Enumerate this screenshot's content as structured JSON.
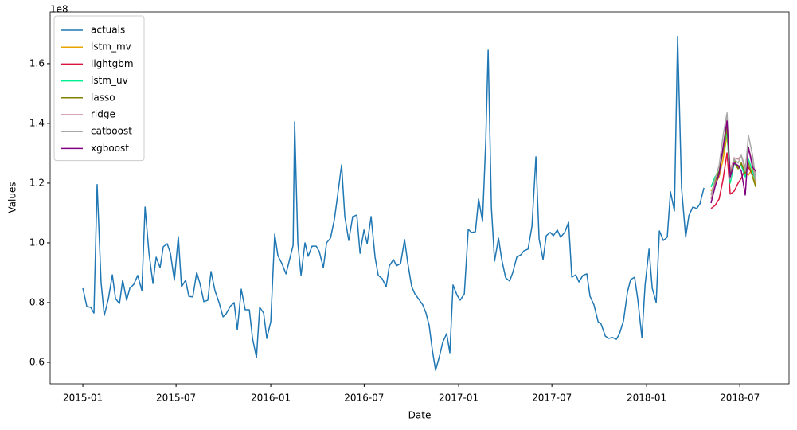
{
  "chart_data": {
    "type": "line",
    "xlabel": "Date",
    "ylabel": "Values",
    "y_offset_label": "1e8",
    "xlim": [
      2014.826,
      2018.758
    ],
    "ylim": [
      0.528,
      1.773
    ],
    "xticks": [
      {
        "value": 2015.0,
        "label": "2015-01"
      },
      {
        "value": 2015.496,
        "label": "2015-07"
      },
      {
        "value": 2016.0,
        "label": "2016-01"
      },
      {
        "value": 2016.497,
        "label": "2016-07"
      },
      {
        "value": 2017.0,
        "label": "2017-01"
      },
      {
        "value": 2017.496,
        "label": "2017-07"
      },
      {
        "value": 2018.0,
        "label": "2018-01"
      },
      {
        "value": 2018.496,
        "label": "2018-07"
      }
    ],
    "yticks": [
      0.6,
      0.8,
      {
        "value": 1,
        "label": "1.0"
      },
      1.2,
      1.4,
      1.6
    ],
    "legend": "upper left",
    "grid": false,
    "series": [
      {
        "name": "actuals",
        "color": "#1f77b4",
        "x": [
          2015.0,
          2015.021,
          2015.042,
          2015.059,
          2015.076,
          2015.097,
          2015.114,
          2015.136,
          2015.157,
          2015.174,
          2015.195,
          2015.212,
          2015.233,
          2015.25,
          2015.271,
          2015.292,
          2015.314,
          2015.331,
          2015.352,
          2015.373,
          2015.39,
          2015.411,
          2015.428,
          2015.449,
          2015.466,
          2015.487,
          2015.508,
          2015.525,
          2015.547,
          2015.564,
          2015.585,
          2015.606,
          2015.623,
          2015.644,
          2015.665,
          2015.682,
          2015.703,
          2015.725,
          2015.746,
          2015.763,
          2015.784,
          2015.805,
          2015.822,
          2015.843,
          2015.864,
          2015.886,
          2015.903,
          2015.924,
          2015.941,
          2015.962,
          2015.979,
          2016.0,
          2016.021,
          2016.038,
          2016.059,
          2016.081,
          2016.097,
          2016.119,
          2016.127,
          2016.144,
          2016.161,
          2016.182,
          2016.199,
          2016.22,
          2016.242,
          2016.258,
          2016.28,
          2016.297,
          2016.318,
          2016.339,
          2016.356,
          2016.377,
          2016.394,
          2016.415,
          2016.436,
          2016.458,
          2016.475,
          2016.496,
          2016.513,
          2016.534,
          2016.555,
          2016.572,
          2016.593,
          2016.614,
          2016.631,
          2016.653,
          2016.669,
          2016.691,
          2016.712,
          2016.729,
          2016.75,
          2016.767,
          2016.788,
          2016.809,
          2016.826,
          2016.843,
          2016.86,
          2016.877,
          2016.898,
          2016.915,
          2016.936,
          2016.953,
          2016.97,
          2016.992,
          2017.008,
          2017.03,
          2017.051,
          2017.068,
          2017.089,
          2017.106,
          2017.127,
          2017.144,
          2017.157,
          2017.174,
          2017.191,
          2017.212,
          2017.229,
          2017.25,
          2017.271,
          2017.288,
          2017.309,
          2017.331,
          2017.347,
          2017.369,
          2017.39,
          2017.411,
          2017.428,
          2017.449,
          2017.466,
          2017.487,
          2017.504,
          2017.525,
          2017.542,
          2017.564,
          2017.585,
          2017.602,
          2017.623,
          2017.64,
          2017.661,
          2017.682,
          2017.699,
          2017.72,
          2017.742,
          2017.758,
          2017.78,
          2017.797,
          2017.818,
          2017.839,
          2017.856,
          2017.877,
          2017.898,
          2017.915,
          2017.936,
          2017.953,
          2017.975,
          2017.992,
          2018.013,
          2018.03,
          2018.051,
          2018.068,
          2018.089,
          2018.11,
          2018.127,
          2018.148,
          2018.165,
          2018.186,
          2018.208,
          2018.225,
          2018.246,
          2018.267,
          2018.284,
          2018.305
        ],
        "values": [
          0.848,
          0.787,
          0.784,
          0.765,
          1.195,
          0.867,
          0.757,
          0.813,
          0.893,
          0.813,
          0.797,
          0.875,
          0.808,
          0.848,
          0.861,
          0.891,
          0.84,
          1.12,
          0.965,
          0.864,
          0.952,
          0.917,
          0.987,
          0.997,
          0.965,
          0.875,
          1.021,
          0.853,
          0.875,
          0.821,
          0.819,
          0.901,
          0.864,
          0.803,
          0.808,
          0.904,
          0.84,
          0.8,
          0.752,
          0.763,
          0.787,
          0.8,
          0.709,
          0.845,
          0.776,
          0.776,
          0.68,
          0.616,
          0.784,
          0.765,
          0.68,
          0.736,
          1.029,
          0.957,
          0.931,
          0.896,
          0.936,
          0.992,
          1.405,
          1.0,
          0.891,
          1.0,
          0.955,
          0.989,
          0.989,
          0.971,
          0.917,
          1.0,
          1.016,
          1.08,
          1.16,
          1.261,
          1.088,
          1.008,
          1.088,
          1.093,
          0.965,
          1.043,
          0.997,
          1.088,
          0.952,
          0.891,
          0.88,
          0.853,
          0.923,
          0.944,
          0.923,
          0.931,
          1.011,
          0.933,
          0.853,
          0.829,
          0.811,
          0.792,
          0.765,
          0.723,
          0.64,
          0.573,
          0.621,
          0.667,
          0.696,
          0.632,
          0.859,
          0.824,
          0.808,
          0.829,
          1.045,
          1.035,
          1.037,
          1.147,
          1.072,
          1.339,
          1.645,
          1.12,
          0.939,
          1.016,
          0.944,
          0.883,
          0.872,
          0.901,
          0.952,
          0.96,
          0.973,
          0.979,
          1.056,
          1.288,
          1.013,
          0.944,
          1.024,
          1.035,
          1.024,
          1.043,
          1.019,
          1.035,
          1.069,
          0.885,
          0.893,
          0.869,
          0.891,
          0.896,
          0.821,
          0.792,
          0.736,
          0.728,
          0.688,
          0.68,
          0.683,
          0.677,
          0.696,
          0.739,
          0.835,
          0.877,
          0.885,
          0.811,
          0.683,
          0.859,
          0.979,
          0.848,
          0.8,
          1.04,
          1.008,
          1.019,
          1.171,
          1.107,
          1.691,
          1.184,
          1.019,
          1.091,
          1.12,
          1.115,
          1.131,
          1.184
        ]
      },
      {
        "name": "lstm_mv",
        "color": "#e8a400",
        "x": [
          2018.343,
          2018.364,
          2018.386,
          2018.407,
          2018.428,
          2018.445,
          2018.466,
          2018.487,
          2018.504,
          2018.525,
          2018.542,
          2018.564,
          2018.581
        ],
        "values": [
          1.173,
          1.197,
          1.221,
          1.28,
          1.36,
          1.232,
          1.267,
          1.248,
          1.267,
          1.232,
          1.227,
          1.248,
          1.187
        ]
      },
      {
        "name": "lightgbm",
        "color": "#dc143c",
        "x": [
          2018.343,
          2018.364,
          2018.386,
          2018.407,
          2018.428,
          2018.445,
          2018.466,
          2018.487,
          2018.504,
          2018.525,
          2018.542,
          2018.564,
          2018.581
        ],
        "values": [
          1.115,
          1.125,
          1.147,
          1.213,
          1.301,
          1.163,
          1.173,
          1.2,
          1.216,
          1.248,
          1.253,
          1.227,
          1.24
        ]
      },
      {
        "name": "lstm_uv",
        "color": "#00ee90",
        "x": [
          2018.343,
          2018.364,
          2018.386,
          2018.407,
          2018.428,
          2018.445,
          2018.466,
          2018.487,
          2018.504,
          2018.525,
          2018.542,
          2018.564,
          2018.581
        ],
        "values": [
          1.187,
          1.221,
          1.24,
          1.307,
          1.373,
          1.2,
          1.267,
          1.253,
          1.259,
          1.221,
          1.28,
          1.24,
          1.205
        ]
      },
      {
        "name": "lasso",
        "color": "#808000",
        "x": [
          2018.343,
          2018.364,
          2018.386,
          2018.407,
          2018.428,
          2018.445,
          2018.466,
          2018.487,
          2018.504,
          2018.525,
          2018.542,
          2018.564,
          2018.581
        ],
        "values": [
          1.16,
          1.205,
          1.24,
          1.307,
          1.387,
          1.227,
          1.28,
          1.248,
          1.267,
          1.232,
          1.267,
          1.221,
          1.187
        ]
      },
      {
        "name": "ridge",
        "color": "#c98a98",
        "x": [
          2018.343,
          2018.364,
          2018.386,
          2018.407,
          2018.428,
          2018.445,
          2018.466,
          2018.487,
          2018.504,
          2018.525,
          2018.542,
          2018.564,
          2018.581
        ],
        "values": [
          1.147,
          1.195,
          1.227,
          1.32,
          1.413,
          1.24,
          1.285,
          1.28,
          1.293,
          1.253,
          1.32,
          1.267,
          1.205
        ]
      },
      {
        "name": "catboost",
        "color": "#a9a9a9",
        "x": [
          2018.343,
          2018.364,
          2018.386,
          2018.407,
          2018.428,
          2018.445,
          2018.466,
          2018.487,
          2018.504,
          2018.525,
          2018.542,
          2018.564,
          2018.581
        ],
        "values": [
          1.16,
          1.213,
          1.259,
          1.36,
          1.435,
          1.213,
          1.28,
          1.267,
          1.293,
          1.24,
          1.36,
          1.293,
          1.213
        ]
      },
      {
        "name": "xgboost",
        "color": "#800080",
        "x": [
          2018.343,
          2018.364,
          2018.386,
          2018.407,
          2018.428,
          2018.445,
          2018.466,
          2018.487,
          2018.504,
          2018.525,
          2018.542,
          2018.564,
          2018.581
        ],
        "values": [
          1.133,
          1.187,
          1.232,
          1.32,
          1.408,
          1.221,
          1.267,
          1.259,
          1.24,
          1.16,
          1.32,
          1.253,
          1.24
        ]
      }
    ]
  }
}
